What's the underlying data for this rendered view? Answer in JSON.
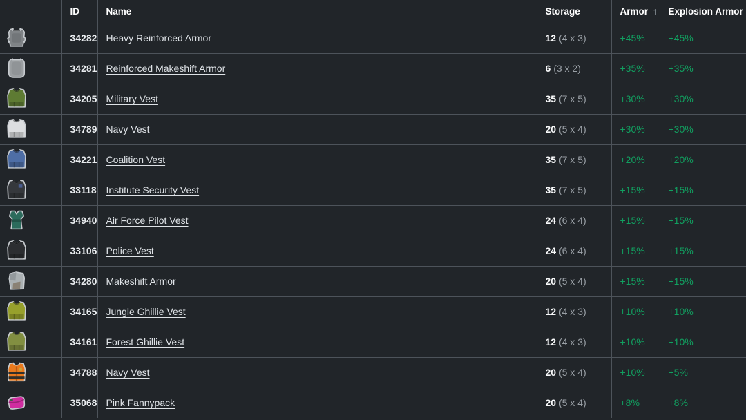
{
  "page": {
    "background_color": "#212529",
    "border_color": "#4d535a",
    "accent_green": "#11a060",
    "muted_text_color": "#9aa0a6"
  },
  "table": {
    "headers": {
      "icon": "",
      "id": "ID",
      "name": "Name",
      "storage": "Storage",
      "armor": "Armor",
      "sort_arrow": "↑",
      "explosion_armor": "Explosion Armor"
    },
    "sorted_by": "Armor",
    "sort_direction": "ascending",
    "rows": [
      {
        "id": "34282",
        "name": "Heavy Reinforced Armor",
        "storage_total": "12",
        "storage_dims": "(4 x 3)",
        "armor": "+45%",
        "explosion_armor": "+45%",
        "icon": {
          "name": "heavy-reinforced-armor-icon",
          "shape": "heavyplate",
          "color": "#7f8386"
        }
      },
      {
        "id": "34281",
        "name": "Reinforced Makeshift Armor",
        "storage_total": "6",
        "storage_dims": "(3 x 2)",
        "armor": "+35%",
        "explosion_armor": "+35%",
        "icon": {
          "name": "reinforced-makeshift-armor-icon",
          "shape": "plate",
          "color": "#9b9fa2"
        }
      },
      {
        "id": "34205",
        "name": "Military Vest",
        "storage_total": "35",
        "storage_dims": "(7 x 5)",
        "armor": "+30%",
        "explosion_armor": "+30%",
        "icon": {
          "name": "military-vest-icon",
          "shape": "vest",
          "color": "#5e7b33"
        }
      },
      {
        "id": "34789",
        "name": "Navy Vest",
        "storage_total": "20",
        "storage_dims": "(5 x 4)",
        "armor": "+30%",
        "explosion_armor": "+30%",
        "icon": {
          "name": "navy-vest-white-icon",
          "shape": "vest",
          "color": "#dcdee0"
        }
      },
      {
        "id": "34221",
        "name": "Coalition Vest",
        "storage_total": "35",
        "storage_dims": "(7 x 5)",
        "armor": "+20%",
        "explosion_armor": "+20%",
        "icon": {
          "name": "coalition-vest-icon",
          "shape": "vest",
          "color": "#4e6ea6"
        }
      },
      {
        "id": "33118",
        "name": "Institute Security Vest",
        "storage_total": "35",
        "storage_dims": "(7 x 5)",
        "armor": "+15%",
        "explosion_armor": "+15%",
        "icon": {
          "name": "institute-security-vest-icon",
          "shape": "vest",
          "color": "#35383c",
          "accent": "#4a5d8f"
        }
      },
      {
        "id": "34940",
        "name": "Air Force Pilot Vest",
        "storage_total": "24",
        "storage_dims": "(6 x 4)",
        "armor": "+15%",
        "explosion_armor": "+15%",
        "icon": {
          "name": "air-force-pilot-vest-icon",
          "shape": "pilot",
          "color": "#2c6b5c"
        }
      },
      {
        "id": "33106",
        "name": "Police Vest",
        "storage_total": "24",
        "storage_dims": "(6 x 4)",
        "armor": "+15%",
        "explosion_armor": "+15%",
        "icon": {
          "name": "police-vest-icon",
          "shape": "vest",
          "color": "#2c2e31"
        }
      },
      {
        "id": "34280",
        "name": "Makeshift Armor",
        "storage_total": "20",
        "storage_dims": "(5 x 4)",
        "armor": "+15%",
        "explosion_armor": "+15%",
        "icon": {
          "name": "makeshift-armor-icon",
          "shape": "patch",
          "color": "#aab0b2",
          "accents": [
            "#8a8174",
            "#93999c"
          ]
        }
      },
      {
        "id": "34165",
        "name": "Jungle Ghillie Vest",
        "storage_total": "12",
        "storage_dims": "(4 x 3)",
        "armor": "+10%",
        "explosion_armor": "+10%",
        "icon": {
          "name": "jungle-ghillie-vest-icon",
          "shape": "vest",
          "color": "#97a02c"
        }
      },
      {
        "id": "34161",
        "name": "Forest Ghillie Vest",
        "storage_total": "12",
        "storage_dims": "(4 x 3)",
        "armor": "+10%",
        "explosion_armor": "+10%",
        "icon": {
          "name": "forest-ghillie-vest-icon",
          "shape": "vest",
          "color": "#828f41"
        }
      },
      {
        "id": "34788",
        "name": "Navy Vest",
        "storage_total": "20",
        "storage_dims": "(5 x 4)",
        "armor": "+10%",
        "explosion_armor": "+5%",
        "icon": {
          "name": "navy-life-vest-orange-icon",
          "shape": "lifevest",
          "color": "#e9791d"
        }
      },
      {
        "id": "35068",
        "name": "Pink Fannypack",
        "storage_total": "20",
        "storage_dims": "(5 x 4)",
        "armor": "+8%",
        "explosion_armor": "+8%",
        "icon": {
          "name": "pink-fannypack-icon",
          "shape": "fannypack",
          "color": "#d02da0"
        }
      }
    ]
  }
}
